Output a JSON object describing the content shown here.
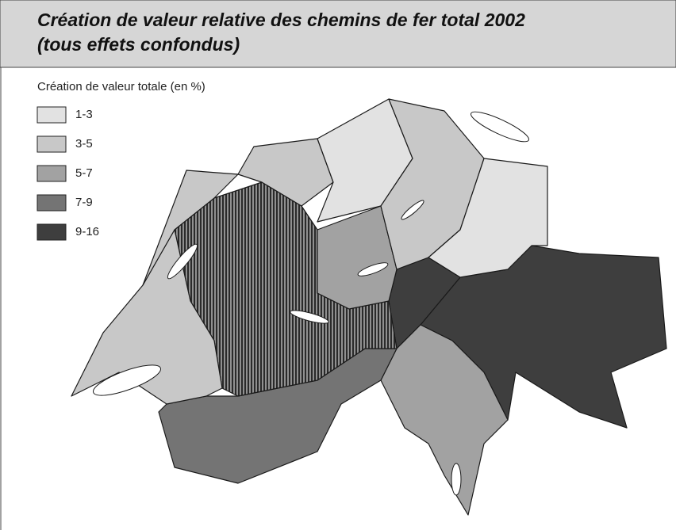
{
  "header": {
    "title_lines": [
      "Création de valeur relative des chemins de fer total 2002",
      "(tous effets confondus)"
    ]
  },
  "legend": {
    "title": "Création de valeur totale (en %)",
    "items": [
      {
        "label": "1-3",
        "color": "#e2e2e2"
      },
      {
        "label": "3-5",
        "color": "#c8c8c8"
      },
      {
        "label": "5-7",
        "color": "#a2a2a2"
      },
      {
        "label": "7-9",
        "color": "#747474"
      },
      {
        "label": "9-16",
        "color": "#3e3e3e"
      }
    ]
  }
}
